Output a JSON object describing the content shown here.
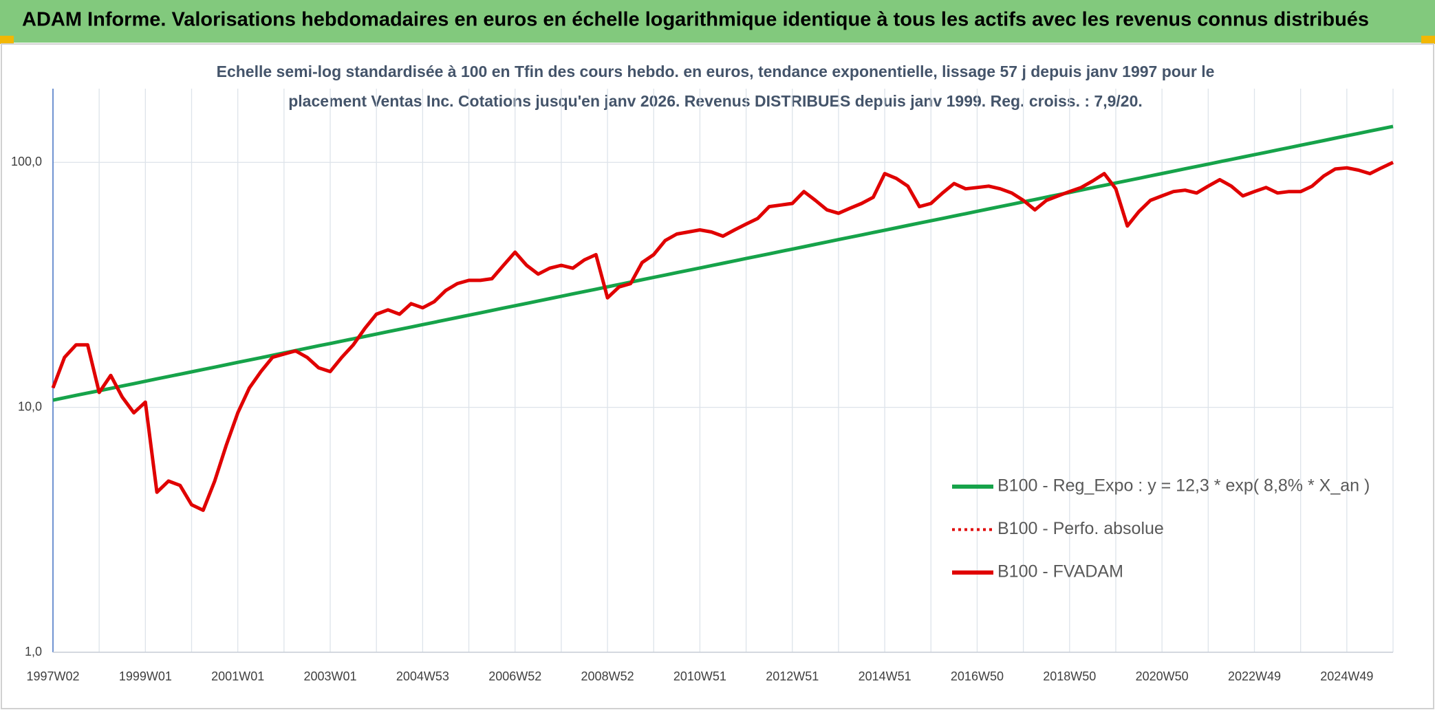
{
  "chart_data": {
    "type": "line",
    "title": "ADAM Informe. Valorisations hebdomadaires en euros en échelle logarithmique identique à tous les actifs avec les revenus connus distribués",
    "subtitle": [
      "Echelle semi-log standardisée à 100 en Tfin des cours hebdo. en euros, tendance exponentielle, lissage 57 j depuis janv 1997 pour le",
      "placement Ventas Inc. Cotations jusqu'en janv 2026. Revenus DISTRIBUES depuis janv 1999. Reg. croiss. : 7,9/20."
    ],
    "log_scale": true,
    "grid": true,
    "legend": "right",
    "ylim": [
      1,
      200
    ],
    "yticks": [
      {
        "value": 1,
        "label": "1,0"
      },
      {
        "value": 10,
        "label": "10,0"
      },
      {
        "value": 100,
        "label": "100,0"
      }
    ],
    "categories": [
      "1997W02",
      null,
      null,
      null,
      null,
      null,
      null,
      null,
      "1999W01",
      null,
      null,
      null,
      null,
      null,
      null,
      null,
      "2001W01",
      null,
      null,
      null,
      null,
      null,
      null,
      null,
      "2003W01",
      null,
      null,
      null,
      null,
      null,
      null,
      null,
      "2004W53",
      null,
      null,
      null,
      null,
      null,
      null,
      null,
      "2006W52",
      null,
      null,
      null,
      null,
      null,
      null,
      null,
      "2008W52",
      null,
      null,
      null,
      null,
      null,
      null,
      null,
      "2010W51",
      null,
      null,
      null,
      null,
      null,
      null,
      null,
      "2012W51",
      null,
      null,
      null,
      null,
      null,
      null,
      null,
      "2014W51",
      null,
      null,
      null,
      null,
      null,
      null,
      null,
      "2016W50",
      null,
      null,
      null,
      null,
      null,
      null,
      null,
      "2018W50",
      null,
      null,
      null,
      null,
      null,
      null,
      null,
      "2020W50",
      null,
      null,
      null,
      null,
      null,
      null,
      null,
      "2022W49",
      null,
      null,
      null,
      null,
      null,
      null,
      null,
      "2024W49",
      null,
      null,
      null,
      null
    ],
    "series": [
      {
        "name": "B100 - Reg_Expo : y = 12,3 * exp( 8,8% *  X_an )",
        "color": "#16a34a",
        "style": "solid",
        "values": [
          10.7,
          10.94,
          11.19,
          11.44,
          11.69,
          11.95,
          12.22,
          12.49,
          12.78,
          13.07,
          13.36,
          13.66,
          13.96,
          14.27,
          14.59,
          14.92,
          15.26,
          15.6,
          15.95,
          16.31,
          16.68,
          17.05,
          17.44,
          17.83,
          18.22,
          18.63,
          19.05,
          19.47,
          19.91,
          20.36,
          20.81,
          21.28,
          21.76,
          22.25,
          22.75,
          23.26,
          23.78,
          24.31,
          24.86,
          25.42,
          25.99,
          26.57,
          27.17,
          27.78,
          28.4,
          29.04,
          29.69,
          30.35,
          31.04,
          31.74,
          32.45,
          33.18,
          33.92,
          34.68,
          35.46,
          36.25,
          37.07,
          37.9,
          38.75,
          39.62,
          40.51,
          41.42,
          42.35,
          43.3,
          44.27,
          45.26,
          46.28,
          47.32,
          48.38,
          49.46,
          50.58,
          51.71,
          52.87,
          54.05,
          55.27,
          56.51,
          57.78,
          59.07,
          60.4,
          61.76,
          63.14,
          64.55,
          66.01,
          67.48,
          69.0,
          70.55,
          72.13,
          73.75,
          75.4,
          77.09,
          78.82,
          80.59,
          82.4,
          84.25,
          86.14,
          88.07,
          90.05,
          92.07,
          94.14,
          96.25,
          98.4,
          100.6,
          102.87,
          105.17,
          107.5,
          109.91,
          112.38,
          114.9,
          117.5,
          120.13,
          122.83,
          125.58,
          128.4,
          131.28,
          134.23,
          137.24,
          140.3
        ]
      },
      {
        "name": "B100 - Perfo. absolue",
        "color": "#e00000",
        "style": "dotted",
        "values": [
          12,
          16,
          18,
          18,
          11.5,
          13.5,
          11,
          9.5,
          10.5,
          4.5,
          5,
          4.8,
          4,
          3.8,
          5,
          7,
          9.5,
          12,
          14,
          16,
          16.5,
          17,
          16,
          14.5,
          14,
          16,
          18,
          21,
          24,
          25,
          24,
          26.5,
          25.5,
          27,
          30,
          32,
          33,
          33,
          33.5,
          38,
          43,
          38,
          35,
          37,
          38,
          37,
          40,
          42,
          28,
          31,
          32,
          39,
          42,
          48,
          51,
          52,
          53,
          52,
          50,
          53,
          56,
          59,
          66,
          67,
          68,
          76,
          70,
          64,
          62,
          65,
          68,
          72,
          90,
          86,
          80,
          66,
          68,
          75,
          82,
          78,
          79,
          80,
          78,
          75,
          70,
          64,
          70,
          73,
          76,
          79,
          84,
          90,
          78,
          55,
          63,
          70,
          73,
          76,
          77,
          75,
          80,
          85,
          80,
          73,
          76,
          79,
          75,
          76,
          76,
          80,
          88,
          94,
          95,
          93,
          90,
          95,
          100
        ]
      },
      {
        "name": "B100 - FVADAM",
        "color": "#e00000",
        "style": "solid",
        "values": [
          12,
          16,
          18,
          18,
          11.5,
          13.5,
          11,
          9.5,
          10.5,
          4.5,
          5,
          4.8,
          4,
          3.8,
          5,
          7,
          9.5,
          12,
          14,
          16,
          16.5,
          17,
          16,
          14.5,
          14,
          16,
          18,
          21,
          24,
          25,
          24,
          26.5,
          25.5,
          27,
          30,
          32,
          33,
          33,
          33.5,
          38,
          43,
          38,
          35,
          37,
          38,
          37,
          40,
          42,
          28,
          31,
          32,
          39,
          42,
          48,
          51,
          52,
          53,
          52,
          50,
          53,
          56,
          59,
          66,
          67,
          68,
          76,
          70,
          64,
          62,
          65,
          68,
          72,
          90,
          86,
          80,
          66,
          68,
          75,
          82,
          78,
          79,
          80,
          78,
          75,
          70,
          64,
          70,
          73,
          76,
          79,
          84,
          90,
          78,
          55,
          63,
          70,
          73,
          76,
          77,
          75,
          80,
          85,
          80,
          73,
          76,
          79,
          75,
          76,
          76,
          80,
          88,
          94,
          95,
          93,
          90,
          95,
          100
        ]
      }
    ]
  }
}
